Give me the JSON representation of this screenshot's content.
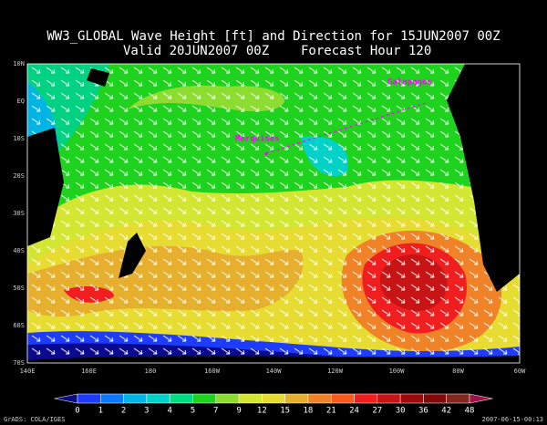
{
  "header": {
    "title": "WW3_GLOBAL Wave Height [ft] and Direction for 15JUN2007 00Z",
    "valid": "Valid 20JUN2007 00Z",
    "forecast": "Forecast Hour 120"
  },
  "map": {
    "lat_labels": [
      "10N",
      "EQ",
      "10S",
      "20S",
      "30S",
      "40S",
      "50S",
      "60S",
      "70S"
    ],
    "lon_labels": [
      "140E",
      "160E",
      "180",
      "160W",
      "140W",
      "120W",
      "100W",
      "80W",
      "60W"
    ],
    "places": [
      "Galapagos",
      "Marquises"
    ]
  },
  "colorbar": {
    "labels": [
      "0",
      "1",
      "2",
      "3",
      "4",
      "5",
      "7",
      "9",
      "12",
      "15",
      "18",
      "21",
      "24",
      "27",
      "30",
      "36",
      "42",
      "48"
    ],
    "colors": [
      "#0a0a8c",
      "#1e3cff",
      "#0a78ff",
      "#00b4e6",
      "#00d2c8",
      "#00dc82",
      "#1ed21e",
      "#8cdc32",
      "#d2e632",
      "#e6dc32",
      "#e6af2d",
      "#f08228",
      "#fa5a1e",
      "#f01e1e",
      "#c81414",
      "#a00a0a",
      "#820a0a",
      "#82281e",
      "#a0144b"
    ]
  },
  "footer": {
    "left": "GrADS: COLA/IGES",
    "right": "2007-06-15-00:13"
  }
}
